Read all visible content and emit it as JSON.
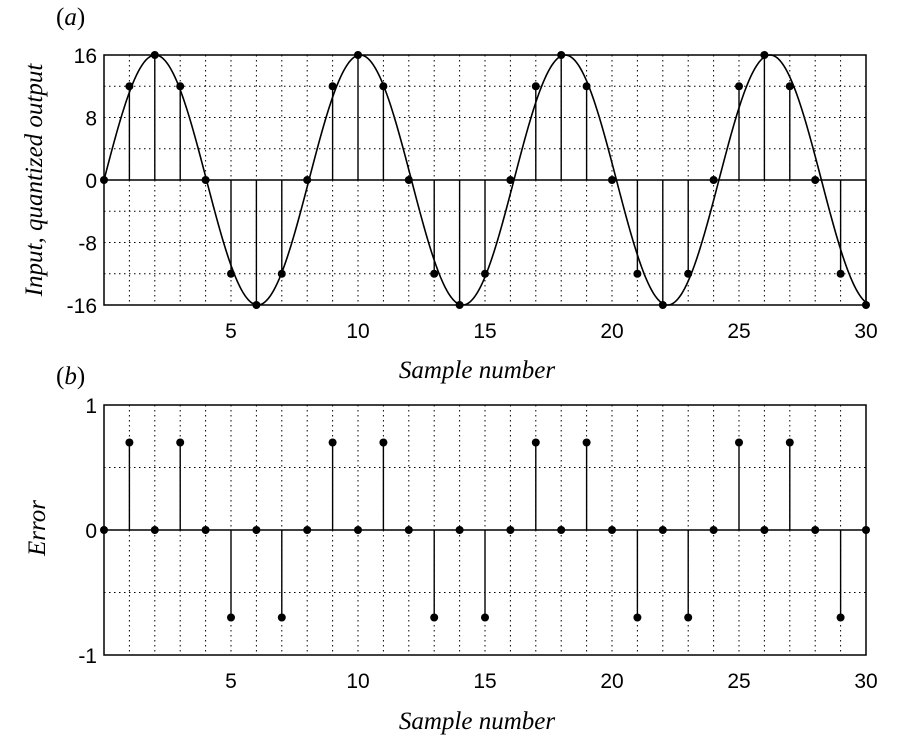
{
  "chart_data": [
    {
      "panel_label": "(a)",
      "type": "line",
      "ylabel": "Input, quantized output",
      "xlabel": "Sample number",
      "xlim": [
        0,
        30
      ],
      "ylim": [
        -16,
        16
      ],
      "xticks": [
        5,
        10,
        15,
        20,
        25,
        30
      ],
      "yticks": [
        16,
        8,
        0,
        -8,
        -16
      ],
      "grid": true,
      "input_signal": {
        "amplitude": 16,
        "period_samples": 8.07,
        "phase": 0
      },
      "x": [
        0,
        1,
        2,
        3,
        4,
        5,
        6,
        7,
        8,
        9,
        10,
        11,
        12,
        13,
        14,
        15,
        16,
        17,
        18,
        19,
        20,
        21,
        22,
        23,
        24,
        25,
        26,
        27,
        28,
        29,
        30
      ],
      "values": [
        0,
        12,
        16,
        12,
        0,
        -12,
        -16,
        -12,
        0,
        12,
        16,
        12,
        0,
        -12,
        -16,
        -12,
        0,
        12,
        16,
        12,
        0,
        -12,
        -16,
        -12,
        0,
        12,
        16,
        12,
        0,
        -12,
        -16
      ]
    },
    {
      "panel_label": "(b)",
      "type": "stem",
      "ylabel": "Error",
      "xlabel": "Sample number",
      "xlim": [
        0,
        30
      ],
      "ylim": [
        -1,
        1
      ],
      "xticks": [
        5,
        10,
        15,
        20,
        25,
        30
      ],
      "yticks": [
        1,
        0,
        -1
      ],
      "grid": true,
      "x": [
        0,
        1,
        2,
        3,
        4,
        5,
        6,
        7,
        8,
        9,
        10,
        11,
        12,
        13,
        14,
        15,
        16,
        17,
        18,
        19,
        20,
        21,
        22,
        23,
        24,
        25,
        26,
        27,
        28,
        29,
        30
      ],
      "values": [
        0,
        0.7,
        0,
        0.7,
        0,
        -0.7,
        0,
        -0.7,
        0,
        0.7,
        0,
        0.7,
        0,
        -0.7,
        0,
        -0.7,
        0,
        0.7,
        0,
        0.7,
        0,
        -0.7,
        0,
        -0.7,
        0,
        0.7,
        0,
        0.7,
        0,
        -0.7,
        0
      ]
    }
  ]
}
